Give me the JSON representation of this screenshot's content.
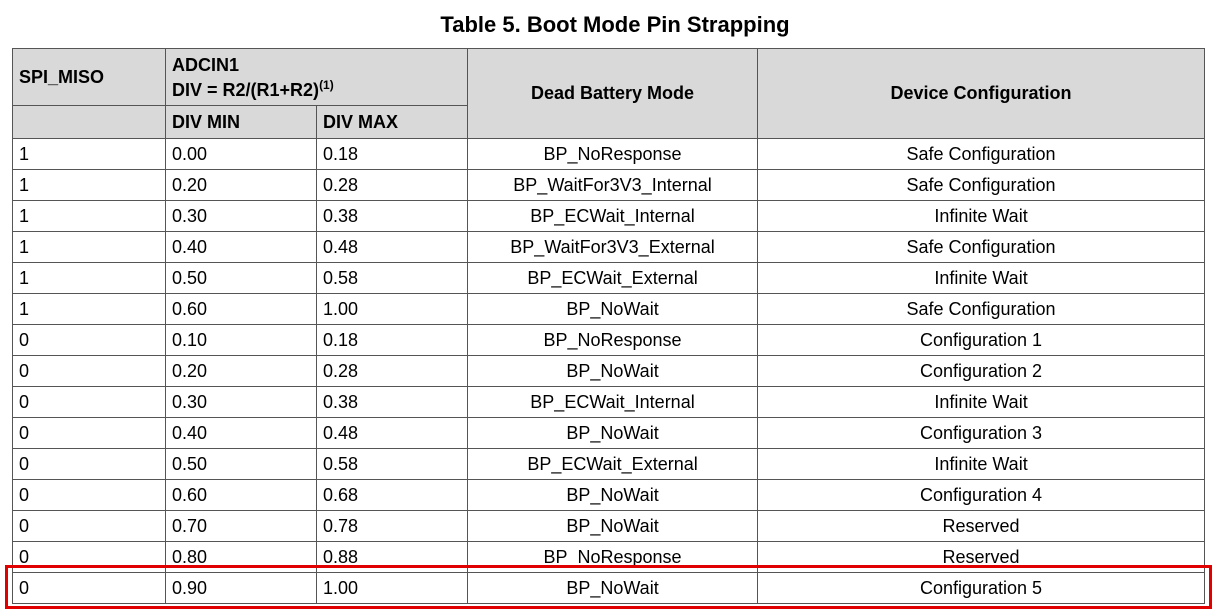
{
  "title": "Table 5. Boot Mode Pin Strapping",
  "headers": {
    "spi_miso": "SPI_MISO",
    "adcin1": "ADCIN1",
    "div_formula": "DIV = R2/(R1+R2)",
    "footnote": "(1)",
    "div_min": "DIV MIN",
    "div_max": "DIV MAX",
    "dead_battery_mode": "Dead Battery Mode",
    "device_configuration": "Device Configuration"
  },
  "rows": [
    {
      "spi_miso": "1",
      "div_min": "0.00",
      "div_max": "0.18",
      "mode": "BP_NoResponse",
      "config": "Safe Configuration"
    },
    {
      "spi_miso": "1",
      "div_min": "0.20",
      "div_max": "0.28",
      "mode": "BP_WaitFor3V3_Internal",
      "config": "Safe Configuration"
    },
    {
      "spi_miso": "1",
      "div_min": "0.30",
      "div_max": "0.38",
      "mode": "BP_ECWait_Internal",
      "config": "Infinite Wait"
    },
    {
      "spi_miso": "1",
      "div_min": "0.40",
      "div_max": "0.48",
      "mode": "BP_WaitFor3V3_External",
      "config": "Safe Configuration"
    },
    {
      "spi_miso": "1",
      "div_min": "0.50",
      "div_max": "0.58",
      "mode": "BP_ECWait_External",
      "config": "Infinite Wait"
    },
    {
      "spi_miso": "1",
      "div_min": "0.60",
      "div_max": "1.00",
      "mode": "BP_NoWait",
      "config": "Safe Configuration"
    },
    {
      "spi_miso": "0",
      "div_min": "0.10",
      "div_max": "0.18",
      "mode": "BP_NoResponse",
      "config": "Configuration 1"
    },
    {
      "spi_miso": "0",
      "div_min": "0.20",
      "div_max": "0.28",
      "mode": "BP_NoWait",
      "config": "Configuration 2"
    },
    {
      "spi_miso": "0",
      "div_min": "0.30",
      "div_max": "0.38",
      "mode": "BP_ECWait_Internal",
      "config": "Infinite Wait"
    },
    {
      "spi_miso": "0",
      "div_min": "0.40",
      "div_max": "0.48",
      "mode": "BP_NoWait",
      "config": "Configuration 3"
    },
    {
      "spi_miso": "0",
      "div_min": "0.50",
      "div_max": "0.58",
      "mode": "BP_ECWait_External",
      "config": "Infinite Wait"
    },
    {
      "spi_miso": "0",
      "div_min": "0.60",
      "div_max": "0.68",
      "mode": "BP_NoWait",
      "config": "Configuration 4"
    },
    {
      "spi_miso": "0",
      "div_min": "0.70",
      "div_max": "0.78",
      "mode": "BP_NoWait",
      "config": "Reserved"
    },
    {
      "spi_miso": "0",
      "div_min": "0.80",
      "div_max": "0.88",
      "mode": "BP_NoResponse",
      "config": "Reserved"
    },
    {
      "spi_miso": "0",
      "div_min": "0.90",
      "div_max": "1.00",
      "mode": "BP_NoWait",
      "config": "Configuration 5"
    }
  ],
  "highlight_color": "#e00000"
}
